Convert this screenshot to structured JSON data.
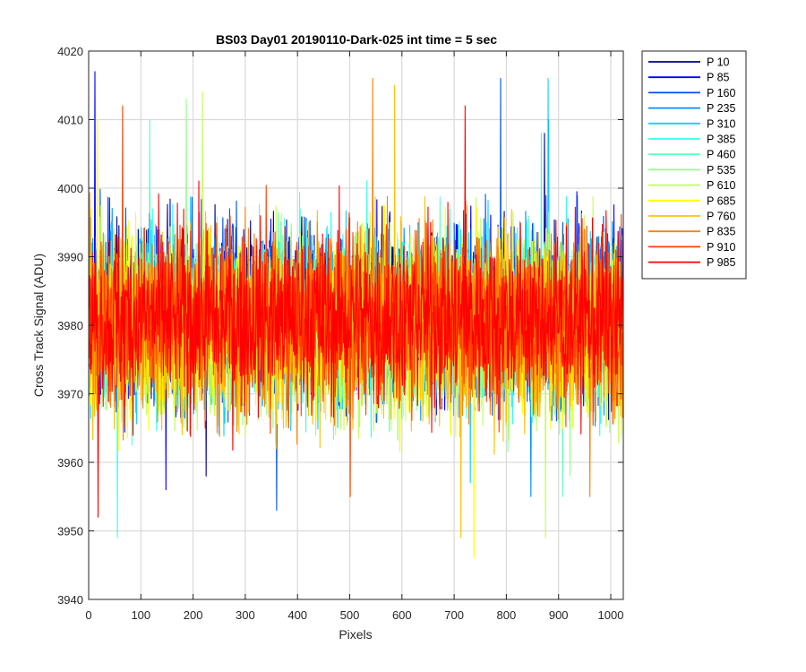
{
  "chart_data": {
    "type": "line",
    "title": "BS03 Day01 20190110-Dark-025 int time = 5 sec",
    "xlabel": "Pixels",
    "ylabel": "Cross Track Signal (ADU)",
    "xlim": [
      0,
      1024
    ],
    "ylim": [
      3940,
      4020
    ],
    "xticks": [
      0,
      100,
      200,
      300,
      400,
      500,
      600,
      700,
      800,
      900,
      1000
    ],
    "yticks": [
      3940,
      3950,
      3960,
      3970,
      3980,
      3990,
      4000,
      4010,
      4020
    ],
    "grid": true,
    "legend_position": "outside-top-right",
    "n_points": 1024,
    "series": [
      {
        "name": "P 10",
        "color": "#00008F",
        "center": 3983,
        "min": 3958,
        "max": 4008
      },
      {
        "name": "P 85",
        "color": "#0000FF",
        "center": 3982,
        "min": 3956,
        "max": 4017
      },
      {
        "name": "P 160",
        "color": "#0050FF",
        "center": 3982,
        "min": 3953,
        "max": 4016
      },
      {
        "name": "P 235",
        "color": "#0090FF",
        "center": 3981,
        "min": 3955,
        "max": 4010
      },
      {
        "name": "P 310",
        "color": "#10D0FF",
        "center": 3981,
        "min": 3957,
        "max": 4016
      },
      {
        "name": "P 385",
        "color": "#30FFEF",
        "center": 3981,
        "min": 3949,
        "max": 4008
      },
      {
        "name": "P 460",
        "color": "#60FFBF",
        "center": 3981,
        "min": 3955,
        "max": 4010
      },
      {
        "name": "P 535",
        "color": "#90FF8F",
        "center": 3980,
        "min": 3958,
        "max": 4013
      },
      {
        "name": "P 610",
        "color": "#C0FF50",
        "center": 3980,
        "min": 3949,
        "max": 4014
      },
      {
        "name": "P 685",
        "color": "#FFFF00",
        "center": 3980,
        "min": 3946,
        "max": 4010
      },
      {
        "name": "P 760",
        "color": "#FFC000",
        "center": 3980,
        "min": 3949,
        "max": 4015
      },
      {
        "name": "P 835",
        "color": "#FF8000",
        "center": 3981,
        "min": 3955,
        "max": 4016
      },
      {
        "name": "P 910",
        "color": "#FF4000",
        "center": 3981,
        "min": 3955,
        "max": 4012
      },
      {
        "name": "P 985",
        "color": "#FF0000",
        "center": 3981,
        "min": 3952,
        "max": 4012
      }
    ]
  }
}
